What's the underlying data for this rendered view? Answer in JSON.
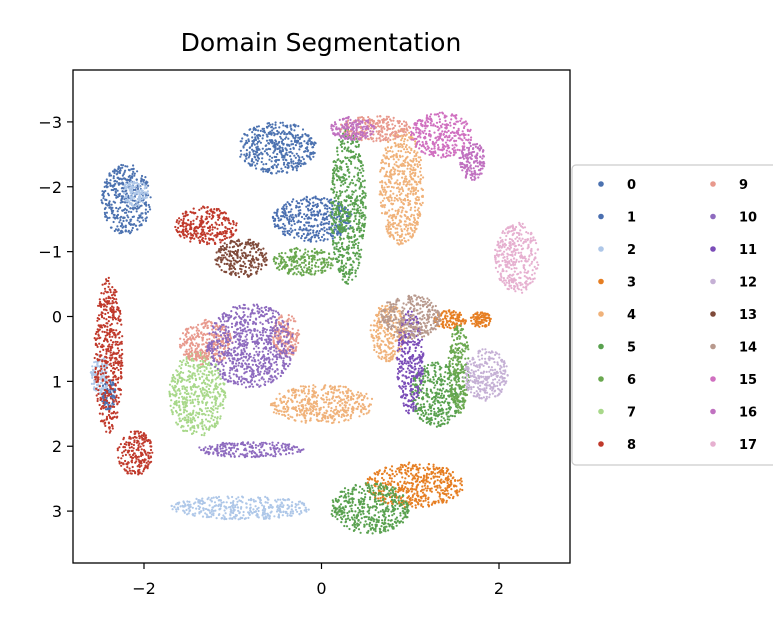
{
  "chart_data": {
    "type": "scatter",
    "title": "Domain Segmentation",
    "xlabel": "",
    "ylabel": "",
    "xlim": [
      -2.8,
      2.8
    ],
    "ylim": [
      3.8,
      -3.8
    ],
    "y_inverted": true,
    "x_ticks": [
      -2,
      0,
      2
    ],
    "y_ticks": [
      -3,
      -2,
      -1,
      0,
      1,
      2,
      3
    ],
    "x_tick_labels": [
      "−2",
      "0",
      "2"
    ],
    "y_tick_labels": [
      "−3",
      "−2",
      "−1",
      "0",
      "1",
      "2",
      "3"
    ],
    "grid": false,
    "legend": {
      "placement": "right-outside",
      "columns": 2
    },
    "series": [
      {
        "name": "0",
        "color": "#4c72b0",
        "regions": [
          [
            -2.2,
            -1.8,
            0.28,
            0.55
          ],
          [
            -0.5,
            -2.6,
            0.45,
            0.4
          ]
        ]
      },
      {
        "name": "1",
        "color": "#4a6fb0",
        "regions": [
          [
            -0.1,
            -1.5,
            0.45,
            0.35
          ],
          [
            -2.4,
            1.2,
            0.08,
            0.25
          ]
        ]
      },
      {
        "name": "2",
        "color": "#aec7e8",
        "regions": [
          [
            -0.9,
            2.95,
            0.8,
            0.18
          ],
          [
            -2.5,
            0.9,
            0.1,
            0.3
          ],
          [
            -2.1,
            -1.9,
            0.15,
            0.2
          ]
        ]
      },
      {
        "name": "3",
        "color": "#e67e22",
        "regions": [
          [
            1.05,
            2.6,
            0.55,
            0.35
          ],
          [
            1.45,
            0.05,
            0.18,
            0.15
          ],
          [
            1.8,
            0.05,
            0.12,
            0.12
          ]
        ]
      },
      {
        "name": "4",
        "color": "#f0b27a",
        "regions": [
          [
            0.9,
            -2.0,
            0.25,
            0.9
          ],
          [
            0.0,
            1.35,
            0.6,
            0.3
          ],
          [
            0.75,
            0.25,
            0.2,
            0.45
          ]
        ]
      },
      {
        "name": "5",
        "color": "#59a14f",
        "regions": [
          [
            0.3,
            -1.7,
            0.2,
            1.2
          ],
          [
            0.55,
            2.95,
            0.45,
            0.4
          ],
          [
            1.3,
            1.2,
            0.3,
            0.5
          ]
        ]
      },
      {
        "name": "6",
        "color": "#6aa84f",
        "regions": [
          [
            -0.2,
            -0.85,
            0.35,
            0.22
          ],
          [
            1.55,
            0.8,
            0.12,
            0.7
          ]
        ]
      },
      {
        "name": "7",
        "color": "#a8d88a",
        "regions": [
          [
            -1.4,
            1.2,
            0.32,
            0.65
          ]
        ]
      },
      {
        "name": "8",
        "color": "#c0392b",
        "regions": [
          [
            -2.4,
            0.6,
            0.16,
            1.2
          ],
          [
            -2.1,
            2.1,
            0.2,
            0.35
          ],
          [
            -1.3,
            -1.4,
            0.35,
            0.3
          ]
        ]
      },
      {
        "name": "9",
        "color": "#e8998d",
        "regions": [
          [
            0.6,
            -2.9,
            0.4,
            0.2
          ],
          [
            -1.3,
            0.4,
            0.3,
            0.35
          ],
          [
            -0.4,
            0.3,
            0.15,
            0.35
          ]
        ]
      },
      {
        "name": "10",
        "color": "#8e6bbf",
        "regions": [
          [
            -0.8,
            0.45,
            0.5,
            0.65
          ],
          [
            -0.8,
            2.05,
            0.6,
            0.12
          ]
        ]
      },
      {
        "name": "11",
        "color": "#7b4db8",
        "regions": [
          [
            1.0,
            0.7,
            0.15,
            0.8
          ]
        ]
      },
      {
        "name": "12",
        "color": "#c5b0d5",
        "regions": [
          [
            1.85,
            0.9,
            0.25,
            0.4
          ]
        ]
      },
      {
        "name": "13",
        "color": "#7f4a3a",
        "regions": [
          [
            -0.9,
            -0.9,
            0.3,
            0.3
          ]
        ]
      },
      {
        "name": "14",
        "color": "#b8998d",
        "regions": [
          [
            1.0,
            0.0,
            0.35,
            0.35
          ]
        ]
      },
      {
        "name": "15",
        "color": "#d070c0",
        "regions": [
          [
            1.35,
            -2.8,
            0.35,
            0.35
          ]
        ]
      },
      {
        "name": "16",
        "color": "#c071c0",
        "regions": [
          [
            0.35,
            -2.9,
            0.25,
            0.18
          ],
          [
            1.7,
            -2.4,
            0.15,
            0.3
          ]
        ]
      },
      {
        "name": "17",
        "color": "#e6b0d0",
        "regions": [
          [
            2.2,
            -0.9,
            0.25,
            0.55
          ]
        ]
      }
    ]
  }
}
